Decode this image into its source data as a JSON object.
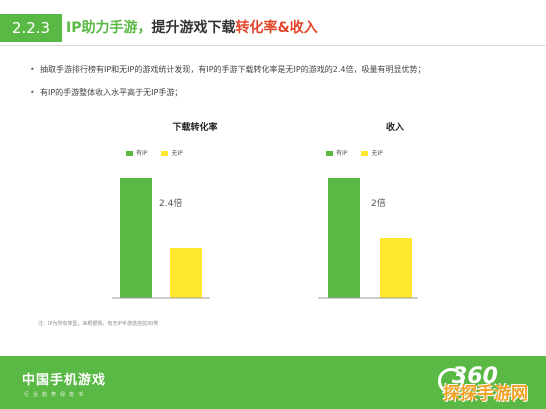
{
  "header": {
    "section_number": "2.2.3",
    "title_part1": "IP助力手游，",
    "title_part2": "提升游戏下载",
    "title_part3": "转化率&收入"
  },
  "bullets": [
    "抽取手游排行榜有IP和无IP的游戏统计发现，有IP的手游下载转化率是无IP的游戏的2.4倍，吸量有明显优势；",
    "有IP的手游整体收入水平高于无IP手游；"
  ],
  "note": "注：IP为所有类型，来根据我，有无IP手游选自前30类",
  "footer": {
    "title": "中国手机游戏",
    "subtitle": "行业趋势绿皮书",
    "logo_text": "360"
  },
  "watermark": "探探手游网",
  "colors": {
    "green": "#5ab845",
    "yellow": "#ffe82e",
    "red": "#e3452b"
  },
  "chart_data": [
    {
      "type": "bar",
      "title": "下载转化率",
      "categories": [
        "有IP",
        "无IP"
      ],
      "series": [
        {
          "name": "有IP",
          "values": [
            2.4,
            null
          ]
        },
        {
          "name": "无IP",
          "values": [
            null,
            1
          ]
        }
      ],
      "values": [
        2.4,
        1
      ],
      "annotation": "2.4倍",
      "legend_position": "top-left",
      "grid": false
    },
    {
      "type": "bar",
      "title": "收入",
      "categories": [
        "有IP",
        "无IP"
      ],
      "series": [
        {
          "name": "有IP",
          "values": [
            2,
            null
          ]
        },
        {
          "name": "无IP",
          "values": [
            null,
            1
          ]
        }
      ],
      "values": [
        2,
        1
      ],
      "annotation": "2倍",
      "legend_position": "top-left",
      "grid": false
    }
  ]
}
